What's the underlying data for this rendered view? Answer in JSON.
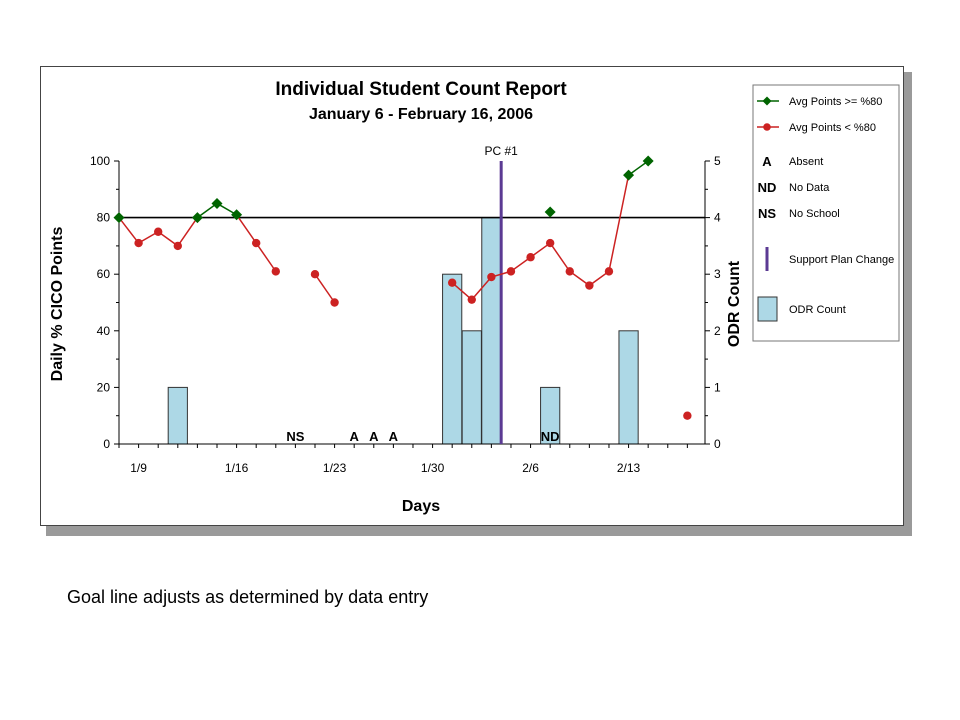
{
  "caption": "Goal line adjusts as determined by data entry",
  "chart_data": {
    "type": "line",
    "title": "Individual Student Count Report",
    "subtitle": "January 6 - February 16, 2006",
    "xlabel": "Days",
    "ylabel": "Daily % CICO Points",
    "y2label": "ODR Count",
    "ylim": [
      0,
      100
    ],
    "y2lim": [
      0,
      5
    ],
    "x_ticks": [
      "1/9",
      "1/16",
      "1/23",
      "1/30",
      "2/6",
      "2/13"
    ],
    "goal_line_value": 80,
    "phase_change": {
      "label": "PC #1",
      "after_day": "2/2"
    },
    "days": [
      "1/6",
      "1/9",
      "1/10",
      "1/11",
      "1/12",
      "1/13",
      "1/16",
      "1/17",
      "1/18",
      "1/19",
      "1/20",
      "1/23",
      "1/24",
      "1/25",
      "1/26",
      "1/27",
      "1/30",
      "1/31",
      "2/1",
      "2/2",
      "2/3",
      "2/6",
      "2/7",
      "2/8",
      "2/9",
      "2/10",
      "2/13",
      "2/14",
      "2/15",
      "2/16"
    ],
    "series": [
      {
        "name": "Avg Points >= %80",
        "color": "#006400",
        "points": [
          {
            "day": "1/6",
            "value": 80
          },
          {
            "day": "1/12",
            "value": 80
          },
          {
            "day": "1/13",
            "value": 85
          },
          {
            "day": "1/16",
            "value": 81
          },
          {
            "day": "2/7",
            "value": 82
          },
          {
            "day": "2/13",
            "value": 95
          },
          {
            "day": "2/14",
            "value": 100
          }
        ]
      },
      {
        "name": "Avg Points < %80",
        "color": "#cc2222",
        "points": [
          {
            "day": "1/9",
            "value": 71
          },
          {
            "day": "1/10",
            "value": 75
          },
          {
            "day": "1/11",
            "value": 70
          },
          {
            "day": "1/17",
            "value": 71
          },
          {
            "day": "1/18",
            "value": 61
          },
          {
            "day": "1/20",
            "value": 60
          },
          {
            "day": "1/23",
            "value": 50
          },
          {
            "day": "1/31",
            "value": 57
          },
          {
            "day": "2/1",
            "value": 51
          },
          {
            "day": "2/2",
            "value": 59
          },
          {
            "day": "2/3",
            "value": 61
          },
          {
            "day": "2/6",
            "value": 66
          },
          {
            "day": "2/7",
            "value": 71
          },
          {
            "day": "2/8",
            "value": 61
          },
          {
            "day": "2/9",
            "value": 56
          },
          {
            "day": "2/10",
            "value": 61
          },
          {
            "day": "2/16",
            "value": 10
          }
        ]
      }
    ],
    "line_segments": [
      {
        "color": "#cc2222",
        "days": [
          "1/6",
          "1/9",
          "1/10",
          "1/11",
          "1/12"
        ]
      },
      {
        "color": "#006400",
        "days": [
          "1/12",
          "1/13",
          "1/16"
        ]
      },
      {
        "color": "#cc2222",
        "days": [
          "1/16",
          "1/17",
          "1/18"
        ]
      },
      {
        "color": "#cc2222",
        "days": [
          "1/20",
          "1/23"
        ]
      },
      {
        "color": "#cc2222",
        "days": [
          "1/31",
          "2/1",
          "2/2",
          "2/3",
          "2/6",
          "2/7"
        ]
      },
      {
        "color": "#cc2222",
        "days": [
          "2/7",
          "2/8",
          "2/9",
          "2/10",
          "2/13"
        ]
      },
      {
        "color": "#006400",
        "days": [
          "2/13",
          "2/14",
          "2/15"
        ]
      },
      {
        "color": "#cc2222",
        "days": [
          "2/15",
          "2/16"
        ]
      }
    ],
    "odr_counts": [
      {
        "day": "1/11",
        "count": 1
      },
      {
        "day": "1/31",
        "count": 3
      },
      {
        "day": "2/1",
        "count": 2
      },
      {
        "day": "2/2",
        "count": 4
      },
      {
        "day": "2/7",
        "count": 1
      },
      {
        "day": "2/13",
        "count": 2
      }
    ],
    "day_codes": [
      {
        "day": "1/19",
        "code": "NS"
      },
      {
        "day": "1/24",
        "code": "A"
      },
      {
        "day": "1/25",
        "code": "A"
      },
      {
        "day": "1/26",
        "code": "A"
      },
      {
        "day": "2/7",
        "code": "ND"
      }
    ],
    "legend": {
      "placement": "right",
      "items": [
        {
          "symbol": "line-green",
          "label": "Avg Points >= %80"
        },
        {
          "symbol": "line-red",
          "label": "Avg Points < %80"
        },
        {
          "symbol": "A",
          "label": "Absent"
        },
        {
          "symbol": "ND",
          "label": "No Data"
        },
        {
          "symbol": "NS",
          "label": "No School"
        },
        {
          "symbol": "phase-bar",
          "label": "Support Plan Change"
        },
        {
          "symbol": "odr-box",
          "label": "ODR Count"
        }
      ]
    },
    "colors": {
      "odr_fill": "#add8e6",
      "phase_line": "#5b3a93",
      "goal_line": "#000000"
    }
  }
}
